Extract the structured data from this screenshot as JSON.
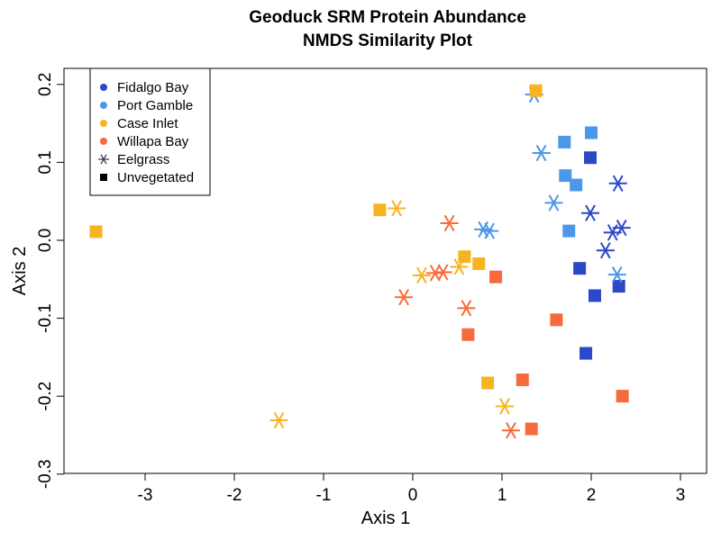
{
  "chart_data": {
    "type": "scatter",
    "title": "Geoduck SRM Protein Abundance",
    "subtitle": "NMDS Similarity Plot",
    "xlabel": "Axis 1",
    "ylabel": "Axis 2",
    "xlim": [
      -3.8,
      3.3
    ],
    "ylim": [
      -0.3,
      0.215
    ],
    "xticks": [
      -3,
      -2,
      -1,
      0,
      1,
      2,
      3
    ],
    "xtick_labels": [
      "-3",
      "-2",
      "-1",
      "0",
      "1",
      "2",
      "3"
    ],
    "yticks": [
      -0.3,
      -0.2,
      -0.1,
      0.0,
      0.1,
      0.2
    ],
    "ytick_labels": [
      "-0.3",
      "-0.2",
      "-0.1",
      "0.0",
      "0.1",
      "0.2"
    ],
    "grid": false,
    "legend_position": "top-left",
    "legend": [
      {
        "label": "Fidalgo Bay",
        "marker": "dot",
        "color": "#2a48c7"
      },
      {
        "label": "Port Gamble",
        "marker": "dot",
        "color": "#4b97e8"
      },
      {
        "label": "Case Inlet",
        "marker": "dot",
        "color": "#f6b423"
      },
      {
        "label": "Willapa Bay",
        "marker": "dot",
        "color": "#f76a3b"
      },
      {
        "label": "Eelgrass",
        "marker": "star",
        "color": "#333333"
      },
      {
        "label": "Unvegetated",
        "marker": "square",
        "color": "#000000"
      }
    ],
    "series": [
      {
        "name": "Fidalgo Bay",
        "color": "#2a48c7",
        "points": [
          {
            "x": 1.99,
            "y": 0.106,
            "marker": "square"
          },
          {
            "x": 1.87,
            "y": -0.036,
            "marker": "square"
          },
          {
            "x": 2.04,
            "y": -0.071,
            "marker": "square"
          },
          {
            "x": 2.31,
            "y": -0.059,
            "marker": "square"
          },
          {
            "x": 1.94,
            "y": -0.145,
            "marker": "square"
          },
          {
            "x": 2.3,
            "y": 0.073,
            "marker": "star"
          },
          {
            "x": 1.99,
            "y": 0.035,
            "marker": "star"
          },
          {
            "x": 2.34,
            "y": 0.016,
            "marker": "star"
          },
          {
            "x": 2.24,
            "y": 0.01,
            "marker": "star"
          },
          {
            "x": 2.16,
            "y": -0.013,
            "marker": "star"
          }
        ]
      },
      {
        "name": "Port Gamble",
        "color": "#4b97e8",
        "points": [
          {
            "x": 1.7,
            "y": 0.126,
            "marker": "square"
          },
          {
            "x": 2.0,
            "y": 0.138,
            "marker": "square"
          },
          {
            "x": 1.71,
            "y": 0.083,
            "marker": "square"
          },
          {
            "x": 1.83,
            "y": 0.071,
            "marker": "square"
          },
          {
            "x": 1.75,
            "y": 0.012,
            "marker": "square"
          },
          {
            "x": 1.36,
            "y": 0.187,
            "marker": "star"
          },
          {
            "x": 1.44,
            "y": 0.112,
            "marker": "star"
          },
          {
            "x": 1.58,
            "y": 0.048,
            "marker": "star"
          },
          {
            "x": 0.79,
            "y": 0.014,
            "marker": "star"
          },
          {
            "x": 0.86,
            "y": 0.012,
            "marker": "star"
          },
          {
            "x": 2.29,
            "y": -0.044,
            "marker": "star"
          }
        ]
      },
      {
        "name": "Case Inlet",
        "color": "#f6b423",
        "points": [
          {
            "x": 1.38,
            "y": 0.192,
            "marker": "square"
          },
          {
            "x": -3.55,
            "y": 0.011,
            "marker": "square"
          },
          {
            "x": -0.37,
            "y": 0.039,
            "marker": "square"
          },
          {
            "x": 0.58,
            "y": -0.021,
            "marker": "square"
          },
          {
            "x": 0.74,
            "y": -0.03,
            "marker": "square"
          },
          {
            "x": 0.84,
            "y": -0.183,
            "marker": "square"
          },
          {
            "x": -0.18,
            "y": 0.041,
            "marker": "star"
          },
          {
            "x": 0.1,
            "y": -0.045,
            "marker": "star"
          },
          {
            "x": 0.52,
            "y": -0.034,
            "marker": "star"
          },
          {
            "x": 1.03,
            "y": -0.213,
            "marker": "star"
          },
          {
            "x": -1.5,
            "y": -0.231,
            "marker": "star"
          }
        ]
      },
      {
        "name": "Willapa Bay",
        "color": "#f76a3b",
        "points": [
          {
            "x": 0.93,
            "y": -0.047,
            "marker": "square"
          },
          {
            "x": 0.62,
            "y": -0.121,
            "marker": "square"
          },
          {
            "x": 1.61,
            "y": -0.102,
            "marker": "square"
          },
          {
            "x": 1.23,
            "y": -0.179,
            "marker": "square"
          },
          {
            "x": 1.33,
            "y": -0.242,
            "marker": "square"
          },
          {
            "x": 2.35,
            "y": -0.2,
            "marker": "square"
          },
          {
            "x": 0.41,
            "y": 0.022,
            "marker": "star"
          },
          {
            "x": -0.1,
            "y": -0.073,
            "marker": "star"
          },
          {
            "x": 0.25,
            "y": -0.042,
            "marker": "star"
          },
          {
            "x": 0.34,
            "y": -0.041,
            "marker": "star"
          },
          {
            "x": 0.6,
            "y": -0.087,
            "marker": "star"
          },
          {
            "x": 1.1,
            "y": -0.244,
            "marker": "star"
          }
        ]
      }
    ]
  }
}
